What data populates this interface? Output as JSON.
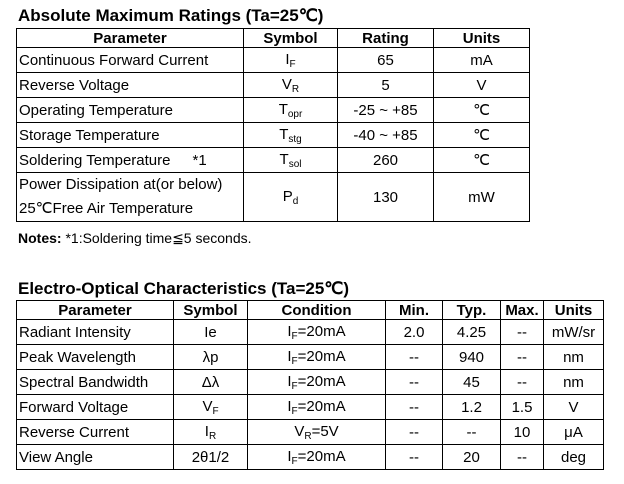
{
  "section1": {
    "title": "Absolute Maximum Ratings (Ta=25℃)",
    "header": [
      "Parameter",
      "Symbol",
      "Rating",
      "Units"
    ],
    "rows": [
      {
        "parameter": [
          "Continuous Forward Current"
        ],
        "symbol": {
          "base": "I",
          "sub": "F"
        },
        "rating": "65",
        "units": "mA"
      },
      {
        "parameter": [
          "Reverse Voltage"
        ],
        "symbol": {
          "base": "V",
          "sub": "R"
        },
        "rating": "5",
        "units": "V"
      },
      {
        "parameter": [
          "Operating Temperature"
        ],
        "symbol": {
          "base": "T",
          "sub": "opr"
        },
        "rating": "-25 ~ +85",
        "units": "℃"
      },
      {
        "parameter": [
          "Storage Temperature"
        ],
        "symbol": {
          "base": "T",
          "sub": "stg"
        },
        "rating": "-40 ~ +85",
        "units": "℃"
      },
      {
        "parameter": [
          "Soldering Temperature"
        ],
        "note": "*1",
        "symbol": {
          "base": "T",
          "sub": "sol"
        },
        "rating": "260",
        "units": "℃"
      },
      {
        "parameter": [
          "Power Dissipation at(or below)",
          "25℃Free Air Temperature"
        ],
        "symbol": {
          "base": "P",
          "sub": "d"
        },
        "rating": "130",
        "units": "mW"
      }
    ]
  },
  "notes": {
    "label": "Notes:",
    "text": "*1:Soldering time≦5 seconds."
  },
  "section2": {
    "title": "Electro-Optical Characteristics (Ta=25℃)",
    "header": [
      "Parameter",
      "Symbol",
      "Condition",
      "Min.",
      "Typ.",
      "Max.",
      "Units"
    ],
    "rows": [
      {
        "parameter": "Radiant Intensity",
        "symbol": {
          "base": "Ie"
        },
        "condition": {
          "base": "I",
          "sub": "F",
          "rest": "=20mA"
        },
        "min": "2.0",
        "typ": "4.25",
        "max": "--",
        "units": "mW/sr"
      },
      {
        "parameter": "Peak Wavelength",
        "symbol": {
          "base": "λp"
        },
        "condition": {
          "base": "I",
          "sub": "F",
          "rest": "=20mA"
        },
        "min": "--",
        "typ": "940",
        "max": "--",
        "units": "nm"
      },
      {
        "parameter": "Spectral Bandwidth",
        "symbol": {
          "base": "Δλ"
        },
        "condition": {
          "base": "I",
          "sub": "F",
          "rest": "=20mA"
        },
        "min": "--",
        "typ": "45",
        "max": "--",
        "units": "nm"
      },
      {
        "parameter": "Forward Voltage",
        "symbol": {
          "base": "V",
          "sub": "F"
        },
        "condition": {
          "base": "I",
          "sub": "F",
          "rest": "=20mA"
        },
        "min": "--",
        "typ": "1.2",
        "max": "1.5",
        "units": "V"
      },
      {
        "parameter": "Reverse Current",
        "symbol": {
          "base": "I",
          "sub": "R"
        },
        "condition": {
          "base": "V",
          "sub": "R",
          "rest": "=5V"
        },
        "min": "--",
        "typ": "--",
        "max": "10",
        "units": "μA"
      },
      {
        "parameter": "View Angle",
        "symbol": {
          "base": "2θ1/2"
        },
        "condition": {
          "base": "I",
          "sub": "F",
          "rest": "=20mA"
        },
        "min": "--",
        "typ": "20",
        "max": "--",
        "units": "deg"
      }
    ]
  }
}
